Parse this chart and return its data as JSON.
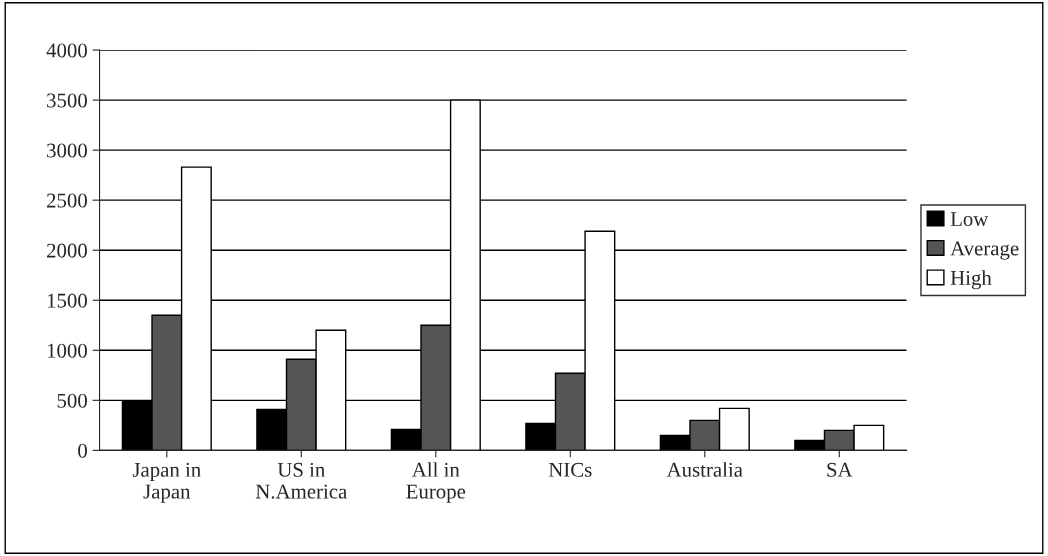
{
  "chart_data": {
    "type": "bar",
    "categories": [
      "Japan in\nJapan",
      "US in\nN.America",
      "All in\nEurope",
      "NICs",
      "Australia",
      "SA"
    ],
    "series": [
      {
        "name": "Low",
        "color": "#000000",
        "values": [
          490,
          410,
          210,
          270,
          150,
          100
        ]
      },
      {
        "name": "Average",
        "color": "#555555",
        "values": [
          1350,
          910,
          1250,
          770,
          300,
          200
        ]
      },
      {
        "name": "High",
        "color": "#ffffff",
        "values": [
          2830,
          1200,
          3500,
          2190,
          420,
          250
        ]
      }
    ],
    "ylim": [
      0,
      4000
    ],
    "yticks": [
      0,
      500,
      1000,
      1500,
      2000,
      2500,
      3000,
      3500,
      4000
    ],
    "grid": "y",
    "legend": "right"
  }
}
